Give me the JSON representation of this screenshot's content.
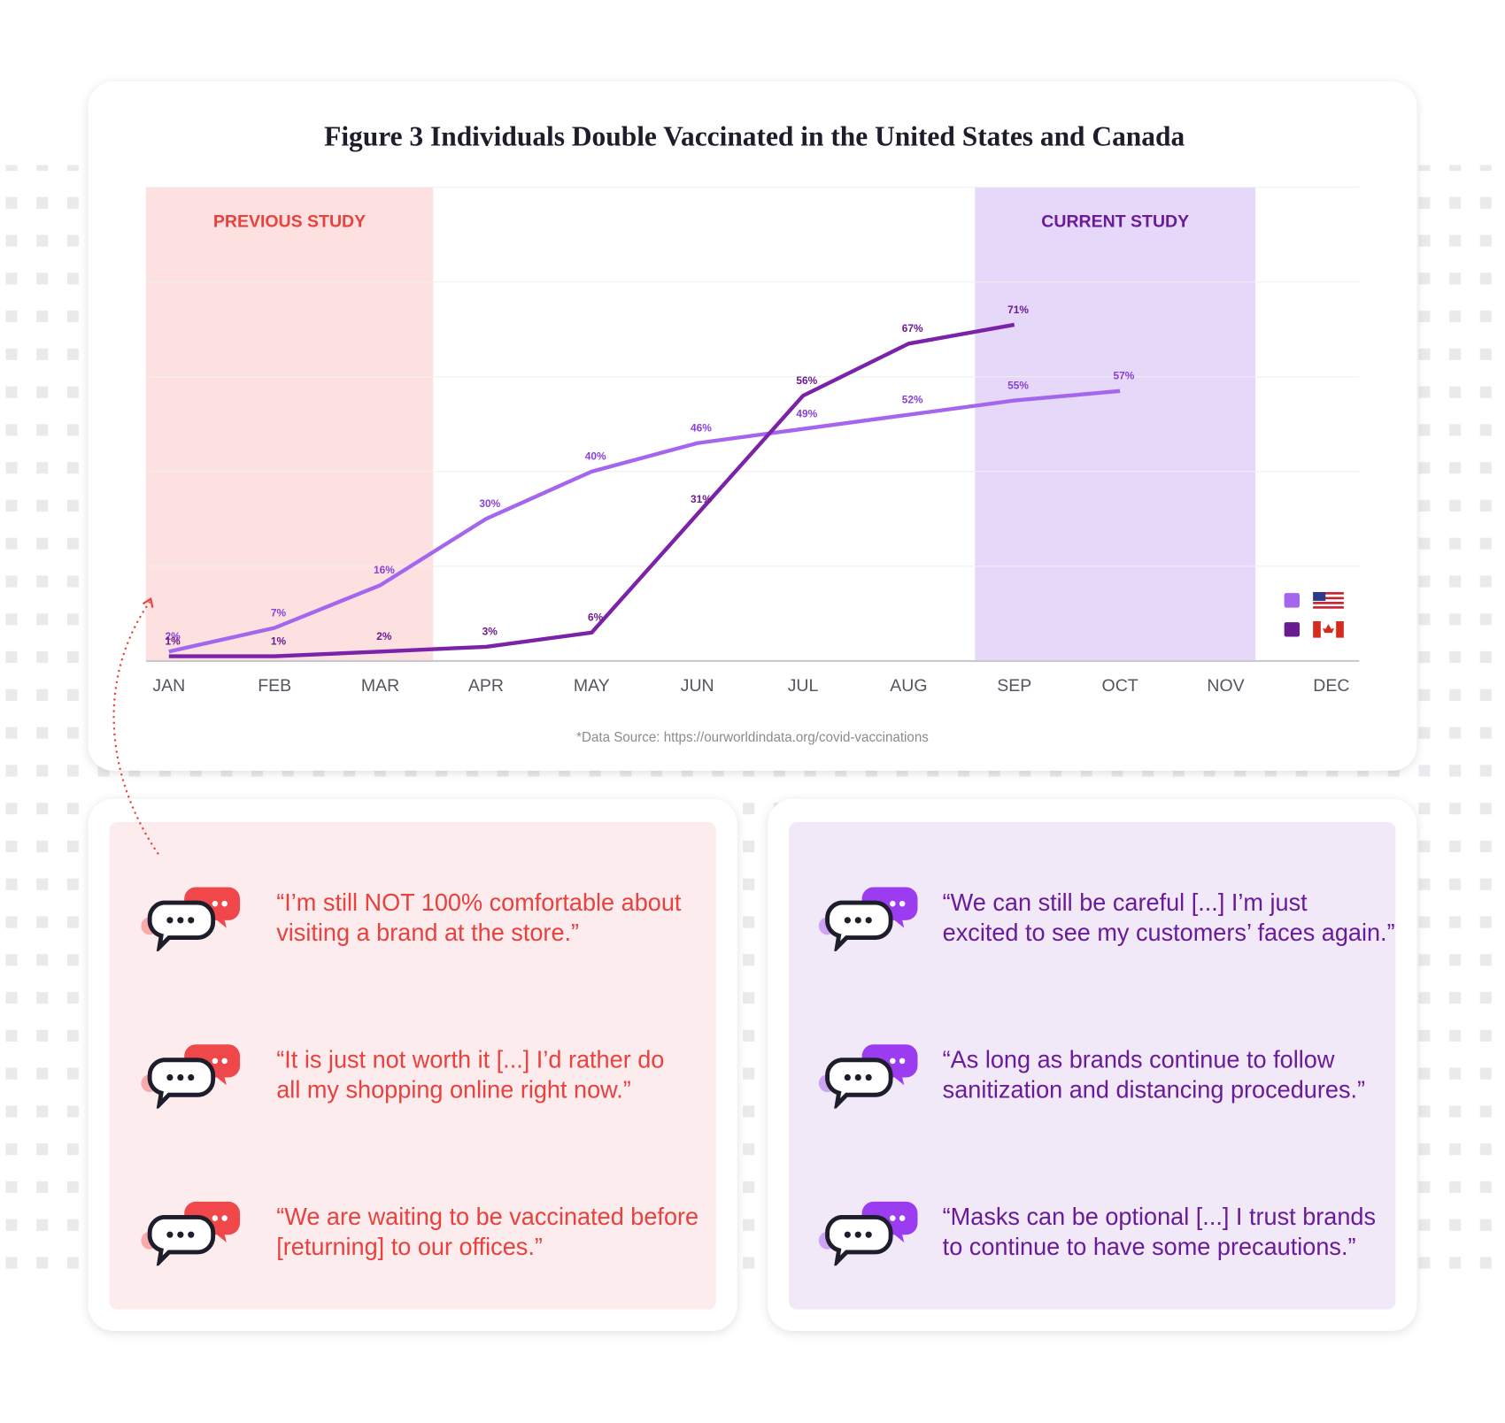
{
  "chart_data": {
    "type": "line",
    "title": "Figure 3 Individuals Double Vaccinated in the United States and Canada",
    "categories": [
      "JAN",
      "FEB",
      "MAR",
      "APR",
      "MAY",
      "JUN",
      "JUL",
      "AUG",
      "SEP",
      "OCT",
      "NOV",
      "DEC"
    ],
    "series": [
      {
        "color": "#a566ee",
        "label_color": "#8a3fd6",
        "values": [
          2,
          7,
          16,
          30,
          40,
          46,
          49,
          52,
          55,
          57,
          null,
          null
        ],
        "value_labels": [
          "2%",
          "7%",
          "16%",
          "30%",
          "40%",
          "46%",
          "49%",
          "52%",
          "55%",
          "57%",
          null,
          null
        ]
      },
      {
        "color": "#7a22a8",
        "label_color": "#6a1b8f",
        "values": [
          1,
          1,
          2,
          3,
          6,
          31,
          56,
          67,
          71,
          null,
          null,
          null
        ],
        "value_labels": [
          "1%",
          "1%",
          "2%",
          "3%",
          "6%",
          "31%",
          "56%",
          "67%",
          "71%",
          null,
          null,
          null
        ]
      }
    ],
    "regions": [
      {
        "label": "PREVIOUS STUDY",
        "from": "JAN",
        "to": "MAR",
        "color": "#fde1e1",
        "label_color": "#e8413e"
      },
      {
        "label": "CURRENT STUDY",
        "from": "SEP",
        "to": "NOV",
        "color": "#e6d8f8",
        "label_color": "#6a1b9a"
      }
    ],
    "ylim": [
      0,
      100
    ],
    "grid": true,
    "source": "*Data Source: https://ourworldindata.org/covid-vaccinations"
  },
  "quotes": {
    "left": [
      [
        "“I’m still NOT 100% comfortable about",
        "visiting a brand at the store.”"
      ],
      [
        "“It is just not worth it [...] I’d rather do",
        "all my shopping online right now.”"
      ],
      [
        "“We are waiting to be vaccinated before",
        "[returning] to our offices.”"
      ]
    ],
    "right": [
      [
        "“We can still be careful [...] I’m just",
        "excited to see my customers’ faces again.”"
      ],
      [
        "“As long as brands continue to follow",
        "sanitization and distancing procedures.”"
      ],
      [
        "“Masks can be optional [...] I trust brands",
        "to continue to have some precautions.”"
      ]
    ]
  }
}
